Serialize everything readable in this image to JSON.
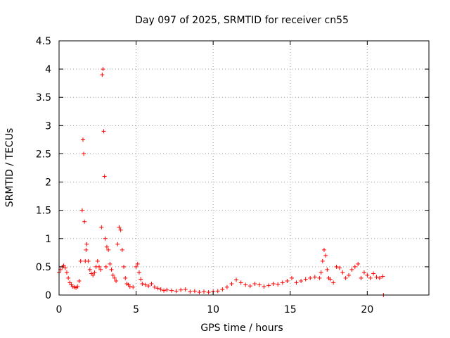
{
  "chart_data": {
    "type": "scatter",
    "title": "Day 097 of 2025, SRMTID for receiver cn55",
    "xlabel": "GPS time / hours",
    "ylabel": "SRMTID / TECUs",
    "xlim": [
      0,
      24
    ],
    "ylim": [
      0,
      4.5
    ],
    "x_ticks": [
      0,
      5,
      10,
      15,
      20
    ],
    "x_tick_labels": [
      "0",
      "5",
      "10",
      "15",
      "20"
    ],
    "y_ticks": [
      0,
      0.5,
      1,
      1.5,
      2,
      2.5,
      3,
      3.5,
      4,
      4.5
    ],
    "y_tick_labels": [
      "0",
      "0.5",
      "1",
      "1.5",
      "2",
      "2.5",
      "3",
      "3.5",
      "4",
      "4.5"
    ],
    "grid": true,
    "marker": "plus",
    "series": [
      {
        "name": "SRMTID",
        "color": "#ff0000",
        "x": [
          0.0,
          0.1,
          0.2,
          0.3,
          0.4,
          0.5,
          0.6,
          0.7,
          0.8,
          0.9,
          1.0,
          1.1,
          1.2,
          1.3,
          1.4,
          1.5,
          1.55,
          1.6,
          1.65,
          1.7,
          1.75,
          1.8,
          1.9,
          2.0,
          2.1,
          2.2,
          2.3,
          2.4,
          2.5,
          2.6,
          2.7,
          2.75,
          2.8,
          2.85,
          2.9,
          2.95,
          3.0,
          3.05,
          3.1,
          3.2,
          3.3,
          3.4,
          3.5,
          3.6,
          3.7,
          3.8,
          3.9,
          4.0,
          4.1,
          4.2,
          4.3,
          4.4,
          4.5,
          4.6,
          4.8,
          5.0,
          5.1,
          5.2,
          5.3,
          5.4,
          5.6,
          5.8,
          6.0,
          6.2,
          6.4,
          6.6,
          6.8,
          7.0,
          7.3,
          7.6,
          7.9,
          8.2,
          8.5,
          8.8,
          9.1,
          9.4,
          9.7,
          10.0,
          10.3,
          10.6,
          10.9,
          11.2,
          11.5,
          11.8,
          12.1,
          12.4,
          12.7,
          13.0,
          13.3,
          13.6,
          13.9,
          14.2,
          14.5,
          14.8,
          15.1,
          15.4,
          15.7,
          16.0,
          16.3,
          16.6,
          16.9,
          17.0,
          17.1,
          17.2,
          17.3,
          17.4,
          17.5,
          17.6,
          17.8,
          18.0,
          18.2,
          18.4,
          18.6,
          18.8,
          19.0,
          19.2,
          19.4,
          19.6,
          19.8,
          20.0,
          20.2,
          20.4,
          20.6,
          20.8,
          21.0,
          21.05
        ],
        "values": [
          0.4,
          0.45,
          0.5,
          0.52,
          0.48,
          0.4,
          0.3,
          0.22,
          0.18,
          0.15,
          0.14,
          0.13,
          0.15,
          0.25,
          0.6,
          1.5,
          2.75,
          2.5,
          1.3,
          0.6,
          0.8,
          0.9,
          0.6,
          0.45,
          0.38,
          0.35,
          0.4,
          0.5,
          0.6,
          0.5,
          0.45,
          1.2,
          3.9,
          4.0,
          2.9,
          2.1,
          1.0,
          0.5,
          0.85,
          0.8,
          0.55,
          0.45,
          0.35,
          0.3,
          0.25,
          0.9,
          1.2,
          1.15,
          0.8,
          0.5,
          0.3,
          0.2,
          0.18,
          0.15,
          0.14,
          0.5,
          0.55,
          0.4,
          0.28,
          0.2,
          0.18,
          0.16,
          0.2,
          0.14,
          0.12,
          0.1,
          0.08,
          0.09,
          0.08,
          0.07,
          0.09,
          0.1,
          0.06,
          0.07,
          0.05,
          0.06,
          0.05,
          0.06,
          0.07,
          0.1,
          0.14,
          0.2,
          0.27,
          0.22,
          0.18,
          0.16,
          0.2,
          0.18,
          0.15,
          0.17,
          0.2,
          0.19,
          0.22,
          0.25,
          0.3,
          0.22,
          0.25,
          0.28,
          0.3,
          0.32,
          0.3,
          0.4,
          0.6,
          0.8,
          0.7,
          0.45,
          0.3,
          0.28,
          0.22,
          0.5,
          0.48,
          0.4,
          0.3,
          0.35,
          0.45,
          0.5,
          0.55,
          0.3,
          0.4,
          0.35,
          0.3,
          0.38,
          0.32,
          0.3,
          0.33,
          0.0
        ]
      }
    ]
  }
}
